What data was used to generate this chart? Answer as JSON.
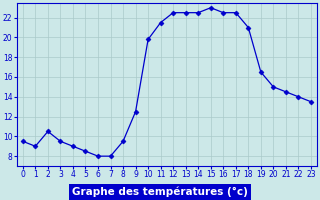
{
  "hours": [
    0,
    1,
    2,
    3,
    4,
    5,
    6,
    7,
    8,
    9,
    10,
    11,
    12,
    13,
    14,
    15,
    16,
    17,
    18,
    19,
    20,
    21,
    22,
    23
  ],
  "temps": [
    9.5,
    9.0,
    10.5,
    9.5,
    9.0,
    8.5,
    8.0,
    8.0,
    9.5,
    12.5,
    19.8,
    21.5,
    22.5,
    22.5,
    22.5,
    23.0,
    22.5,
    22.5,
    21.0,
    16.5,
    15.0,
    14.5,
    14.0,
    13.5
  ],
  "line_color": "#0000cc",
  "marker": "D",
  "markersize": 2.5,
  "linewidth": 0.9,
  "bg_color": "#cce8e8",
  "grid_color": "#aacaca",
  "xlabel": "Graphe des températures (°c)",
  "xlabel_fontsize": 7.5,
  "xlim": [
    -0.5,
    23.5
  ],
  "ylim": [
    7,
    23.5
  ],
  "yticks": [
    8,
    10,
    12,
    14,
    16,
    18,
    20,
    22
  ],
  "xtick_labels": [
    "0",
    "1",
    "2",
    "3",
    "4",
    "5",
    "6",
    "7",
    "8",
    "9",
    "10",
    "11",
    "12",
    "13",
    "14",
    "15",
    "16",
    "17",
    "18",
    "19",
    "20",
    "21",
    "22",
    "23"
  ],
  "tick_fontsize": 5.5,
  "axis_color": "#0000cc",
  "label_bg": "#0000cc",
  "label_fg": "#ffffff"
}
